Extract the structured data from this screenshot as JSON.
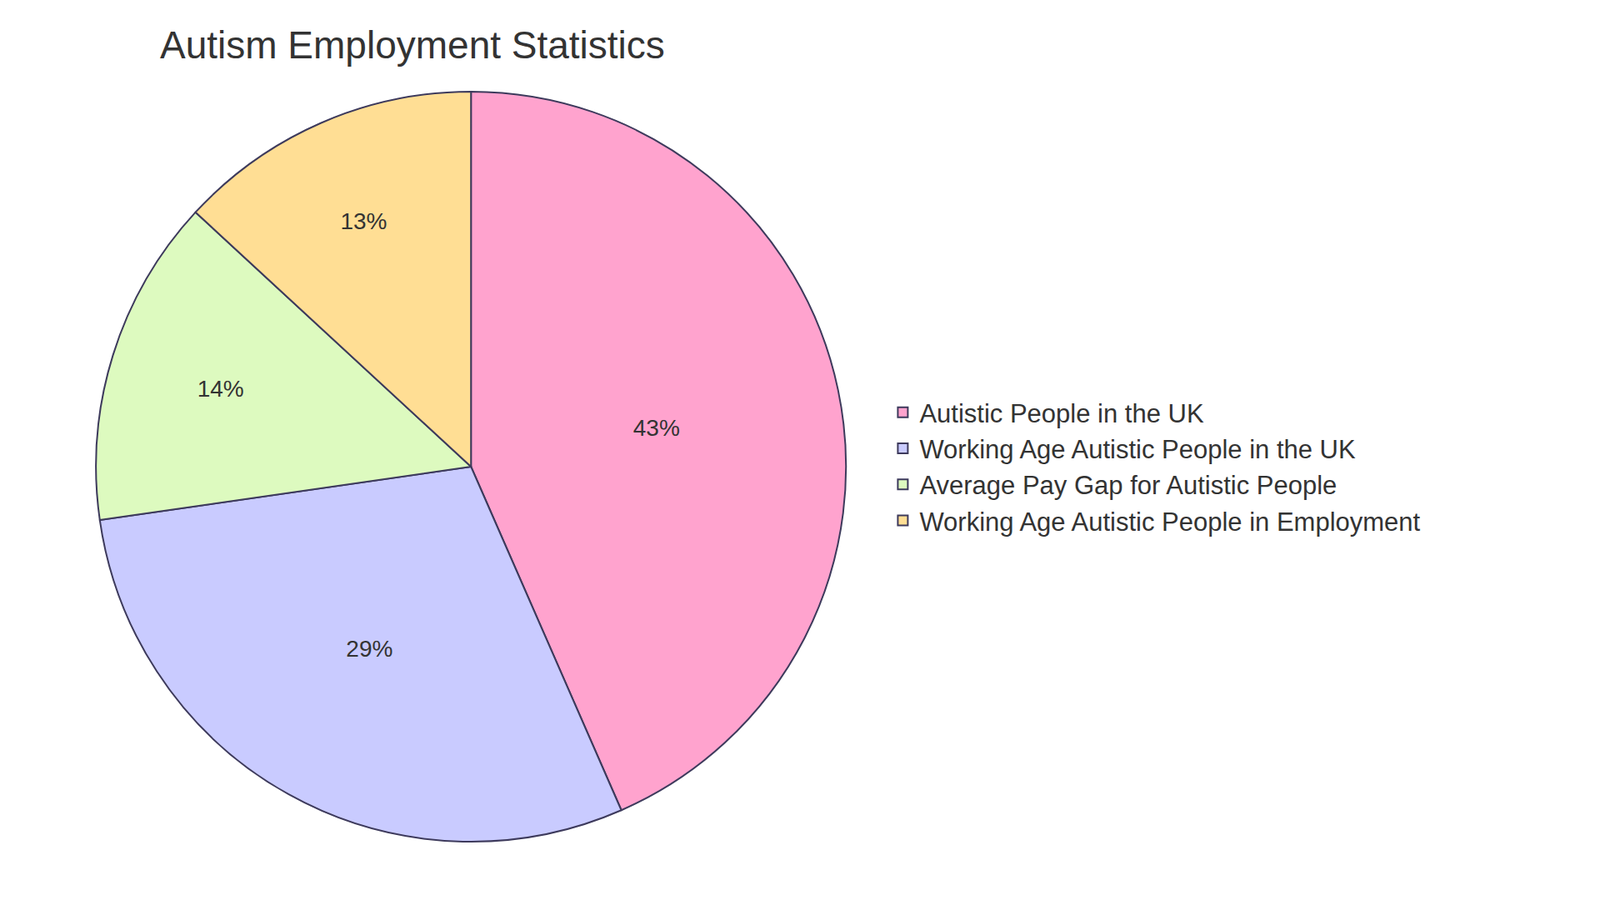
{
  "chart_data": {
    "type": "pie",
    "title": "Autism Employment Statistics",
    "categories": [
      "Autistic People in the UK",
      "Working Age Autistic People in the UK",
      "Average Pay Gap for Autistic People",
      "Working Age Autistic People in Employment"
    ],
    "values": [
      43,
      29,
      14,
      13
    ],
    "value_labels": [
      "43%",
      "29%",
      "14%",
      "13%"
    ],
    "colors": [
      "#ffa3ce",
      "#c9cbff",
      "#ddfabf",
      "#ffde94"
    ],
    "data_labels": true,
    "legend": "right"
  }
}
